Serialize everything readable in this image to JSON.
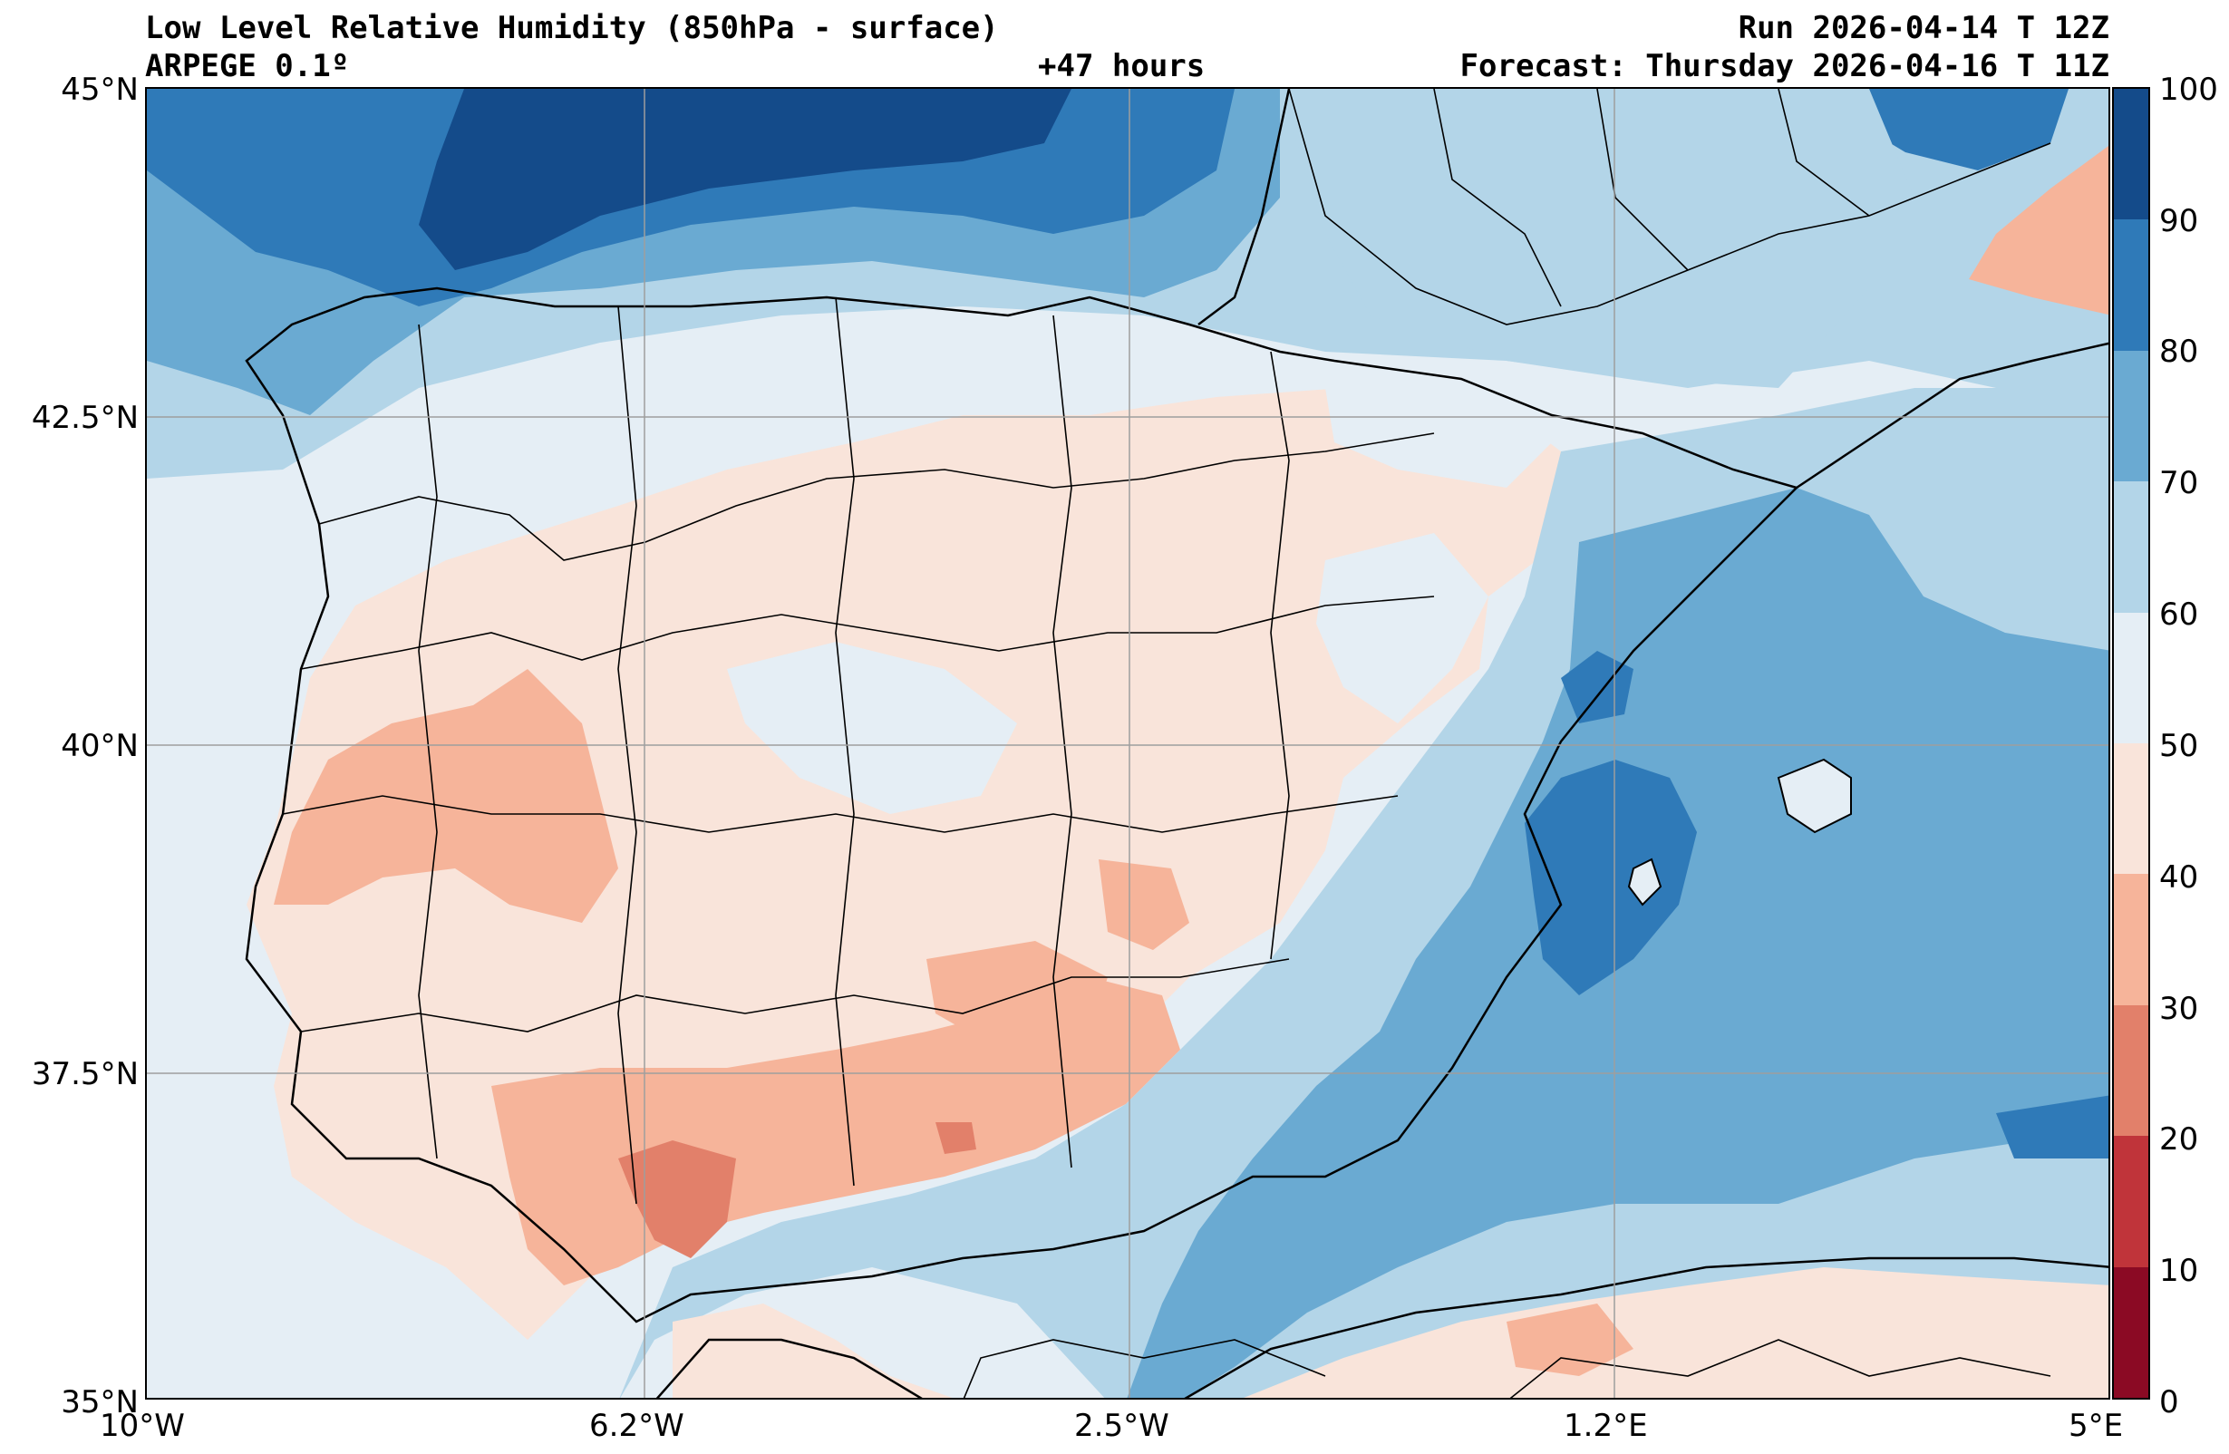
{
  "header": {
    "title": "Low Level Relative Humidity (850hPa - surface)",
    "model": "ARPEGE 0.1º",
    "lead_time": "+47 hours",
    "run": "Run 2026-04-14 T 12Z",
    "forecast": "Forecast: Thursday 2026-04-16 T 11Z"
  },
  "axes": {
    "lat_labels": [
      "45°N",
      "42.5°N",
      "40°N",
      "37.5°N",
      "35°N"
    ],
    "lon_labels": [
      "10°W",
      "6.2°W",
      "2.5°W",
      "1.2°E",
      "5°E"
    ]
  },
  "colorbar": {
    "levels": [
      "0",
      "10",
      "20",
      "30",
      "40",
      "50",
      "60",
      "70",
      "80",
      "90",
      "100"
    ],
    "colors": [
      "#8b0a24",
      "#c0343a",
      "#e2806a",
      "#f6b49a",
      "#f9e4da",
      "#e5eef5",
      "#b3d5e8",
      "#6aaad2",
      "#2f7ab8",
      "#144b8a"
    ]
  },
  "map": {
    "region": "Iberian Peninsula",
    "lat_range": [
      35,
      45
    ],
    "lon_range": [
      -10,
      5
    ],
    "grid": true,
    "coastlines": true,
    "borders": true
  }
}
